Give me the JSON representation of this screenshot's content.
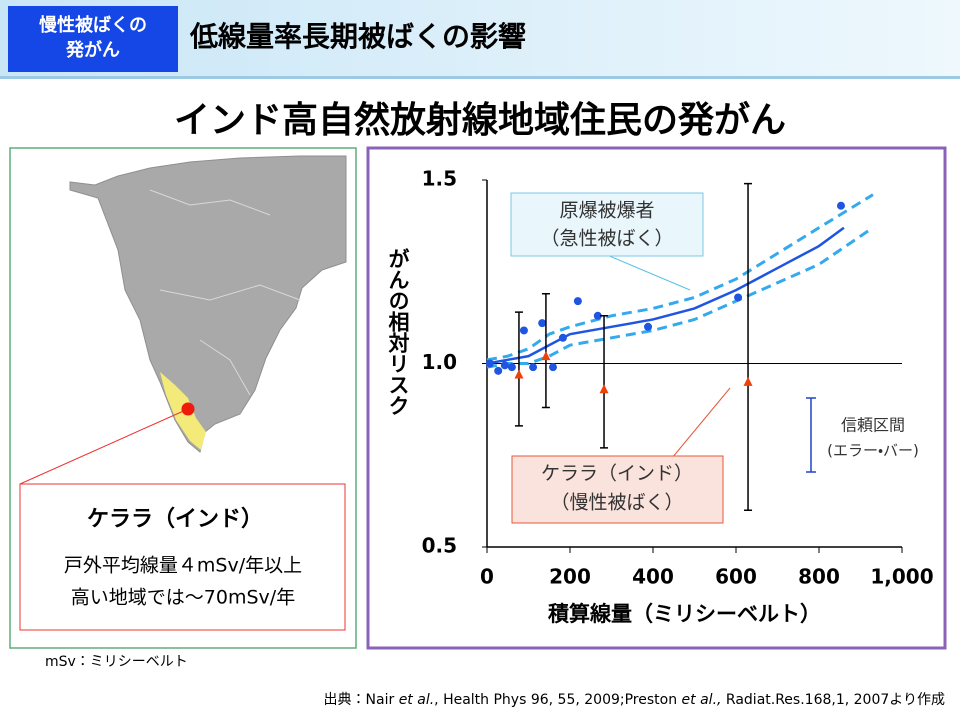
{
  "header": {
    "badge": [
      "慢性被ばくの",
      "発がん"
    ],
    "title": "低線量率長期被ばくの影響"
  },
  "main_title": "インド高自然放射線地域住民の発がん",
  "map_panel": {
    "region": "ケララ（インド）",
    "lines": [
      "戸外平均線量４mSv/年以上",
      "高い地域では～70mSv/年"
    ]
  },
  "footnote": "mSv：ミリシーベルト",
  "source": [
    "出典：Nair ",
    "et al.",
    ", Health Phys 96, 55, 2009;Preston ",
    "et al.,",
    " Radiat.Res.168,1, 2007より作成"
  ],
  "chart_data": {
    "type": "scatter",
    "xlabel": "積算線量（ミリシーベルト）",
    "ylabel": "がんの相対リスク",
    "xlim": [
      0,
      1000
    ],
    "ylim": [
      0.5,
      1.5
    ],
    "xticks": [
      0,
      200,
      400,
      600,
      800,
      {
        "value": 1000,
        "label": "1,000"
      }
    ],
    "yticks": [
      0.5,
      {
        "value": 1,
        "label": "1.0"
      },
      1.5
    ],
    "reference_y": 1,
    "series": [
      {
        "name": "原爆被爆者",
        "note": "（急性被ばく）",
        "color": "#1f55e0",
        "x": [
          7,
          27,
          43,
          60,
          89,
          111,
          133,
          159,
          183,
          219,
          267,
          388,
          605,
          853
        ],
        "values": [
          1.0,
          0.98,
          0.995,
          0.99,
          1.09,
          0.99,
          1.11,
          0.99,
          1.07,
          1.17,
          1.13,
          1.1,
          1.18,
          1.43
        ]
      },
      {
        "name": "ケララ（インド）",
        "note": "（慢性被ばく）",
        "color": "#f0400a",
        "x": [
          77,
          142,
          282,
          629
        ],
        "values": [
          0.97,
          1.02,
          0.93,
          0.95
        ],
        "lower": [
          0.83,
          0.88,
          0.77,
          0.6
        ],
        "upper": [
          1.14,
          1.19,
          1.13,
          1.49
        ]
      }
    ],
    "fit": {
      "color": "#1f55e0",
      "ci_color": "#33aaee",
      "x": [
        0,
        50,
        100,
        150,
        200,
        300,
        400,
        500,
        600,
        700,
        800,
        860
      ],
      "values": [
        1.0,
        1.01,
        1.02,
        1.05,
        1.08,
        1.1,
        1.12,
        1.15,
        1.2,
        1.26,
        1.32,
        1.37
      ],
      "ci_x": [
        0,
        50,
        100,
        150,
        200,
        300,
        400,
        500,
        600,
        700,
        800,
        930
      ],
      "ci_upper": [
        1.01,
        1.02,
        1.04,
        1.08,
        1.1,
        1.13,
        1.15,
        1.18,
        1.23,
        1.3,
        1.37,
        1.46
      ],
      "ci_lower": [
        0.99,
        1.0,
        1.0,
        1.02,
        1.05,
        1.07,
        1.09,
        1.12,
        1.17,
        1.22,
        1.27,
        1.37
      ]
    },
    "errorbar_legend": [
      "信頼区間",
      "(エラー・バー)"
    ]
  }
}
